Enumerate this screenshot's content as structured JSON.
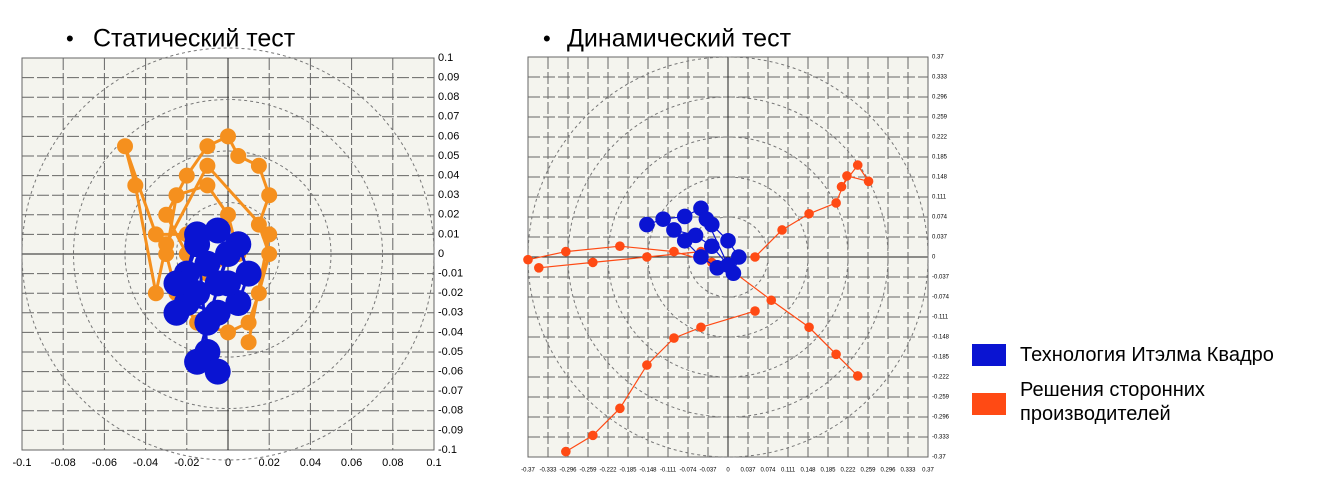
{
  "chart_data": [
    {
      "type": "scatter",
      "title": "Статический тест",
      "xlim": [
        -0.1,
        0.1
      ],
      "ylim": [
        -0.1,
        0.1
      ],
      "xticks": [
        -0.1,
        -0.08,
        -0.06,
        -0.04,
        -0.02,
        0,
        0.02,
        0.04,
        0.06,
        0.08,
        0.1
      ],
      "yticks": [
        0.1,
        0.09,
        0.08,
        0.07,
        0.06,
        0.05,
        0.04,
        0.03,
        0.02,
        0.01,
        0,
        -0.01,
        -0.02,
        -0.03,
        -0.04,
        -0.05,
        -0.06,
        -0.07,
        -0.08,
        -0.09,
        -0.1
      ],
      "grid": true,
      "series": [
        {
          "name": "Решения сторонних производителей",
          "color": "#f5901e",
          "x": [
            -0.02,
            -0.03,
            -0.02,
            -0.01,
            0.0,
            0.005,
            0.015,
            0.02,
            0.015,
            0.02,
            0.015,
            0.01,
            0.0,
            -0.015,
            -0.025,
            -0.03,
            -0.025,
            -0.01,
            0.0,
            0.005,
            -0.01,
            -0.02,
            -0.035,
            -0.05,
            -0.045,
            -0.035,
            -0.03,
            -0.01,
            0.02,
            0.01
          ],
          "values": [
            0.0,
            0.02,
            0.04,
            0.055,
            0.06,
            0.05,
            0.045,
            0.03,
            0.015,
            0.0,
            -0.02,
            -0.035,
            -0.04,
            -0.035,
            -0.02,
            0.0,
            0.03,
            0.035,
            0.02,
            0.0,
            -0.01,
            0.01,
            0.01,
            0.055,
            0.035,
            -0.02,
            0.005,
            0.045,
            0.01,
            -0.045
          ]
        },
        {
          "name": "Технология Итэлма Квадро",
          "color": "#0a14d2",
          "x": [
            -0.02,
            -0.015,
            -0.005,
            0.005,
            0.01,
            0.005,
            -0.005,
            -0.02,
            -0.025,
            -0.01,
            0.0,
            -0.015,
            -0.025,
            -0.015,
            -0.01,
            -0.005,
            -0.015,
            -0.01,
            0.0,
            -0.005
          ],
          "values": [
            -0.01,
            0.005,
            0.012,
            0.005,
            -0.01,
            -0.025,
            -0.03,
            -0.025,
            -0.015,
            -0.005,
            -0.015,
            -0.02,
            -0.03,
            0.01,
            -0.05,
            -0.06,
            -0.055,
            -0.035,
            0.0,
            -0.015
          ]
        }
      ]
    },
    {
      "type": "scatter",
      "title": "Динамический тест",
      "xlim": [
        -0.37,
        0.37
      ],
      "ylim": [
        -0.37,
        0.37
      ],
      "xticks": [
        -0.37,
        -0.333,
        -0.296,
        -0.259,
        -0.222,
        -0.185,
        -0.148,
        -0.111,
        -0.074,
        -0.037,
        0,
        0.037,
        0.074,
        0.111,
        0.148,
        0.185,
        0.222,
        0.259,
        0.296,
        0.333,
        0.37
      ],
      "yticks": [
        0.37,
        0.333,
        0.296,
        0.259,
        0.222,
        0.185,
        0.148,
        0.111,
        0.074,
        0.037,
        0,
        -0.037,
        -0.074,
        -0.111,
        -0.148,
        -0.185,
        -0.222,
        -0.259,
        -0.296,
        -0.333,
        -0.37
      ],
      "grid": true,
      "series": [
        {
          "color": "#ff4a14",
          "x": [
            -0.37,
            -0.3,
            -0.2,
            -0.1,
            -0.03,
            null,
            -0.35,
            -0.25,
            -0.15,
            -0.05,
            null,
            0.05,
            0.1,
            0.15,
            0.2,
            0.22,
            0.26,
            0.24,
            0.21,
            null,
            0.0,
            0.08,
            0.15,
            0.2,
            0.24,
            null,
            0.05,
            -0.05,
            -0.1,
            -0.15,
            -0.2,
            -0.25,
            -0.3
          ],
          "values": [
            -0.005,
            0.01,
            0.02,
            0.01,
            -0.01,
            null,
            -0.02,
            -0.01,
            0.0,
            0.01,
            null,
            0.0,
            0.05,
            0.08,
            0.1,
            0.15,
            0.14,
            0.17,
            0.13,
            null,
            -0.02,
            -0.08,
            -0.13,
            -0.18,
            -0.22,
            null,
            -0.1,
            -0.13,
            -0.15,
            -0.2,
            -0.28,
            -0.33,
            -0.36
          ]
        },
        {
          "color": "#0a14d2",
          "x": [
            -0.15,
            -0.12,
            -0.08,
            -0.05,
            -0.03,
            0.0,
            0.02,
            0.01,
            -0.02,
            -0.05,
            -0.08,
            -0.1,
            -0.06,
            -0.03,
            0.0,
            -0.04
          ],
          "values": [
            0.06,
            0.07,
            0.075,
            0.09,
            0.06,
            0.03,
            0.0,
            -0.03,
            -0.02,
            0.0,
            0.03,
            0.05,
            0.04,
            0.02,
            -0.015,
            0.07
          ]
        }
      ]
    }
  ]
}
